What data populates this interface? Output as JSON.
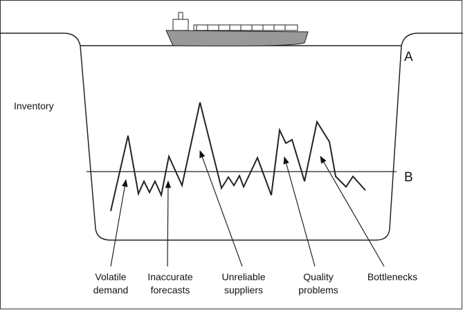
{
  "labels": {
    "inventory": "Inventory",
    "level_a": "A",
    "level_b": "B"
  },
  "causes": [
    {
      "lines": [
        "Volatile",
        "demand"
      ]
    },
    {
      "lines": [
        "Inaccurate",
        "forecasts"
      ]
    },
    {
      "lines": [
        "Unreliable",
        "suppliers"
      ]
    },
    {
      "lines": [
        "Quality",
        "problems"
      ]
    },
    {
      "lines": [
        "Bottlenecks"
      ]
    }
  ]
}
